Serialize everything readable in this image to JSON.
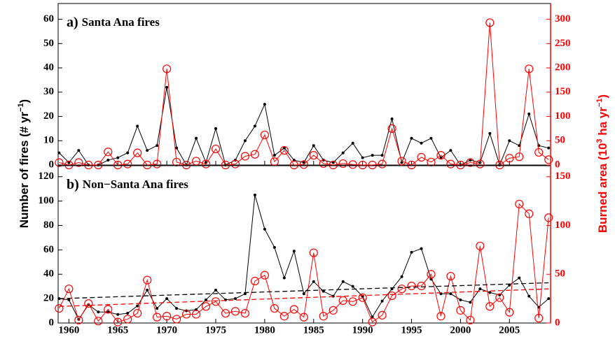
{
  "chart_data": [
    {
      "type": "line",
      "panel": "a)",
      "title": "Santa Ana fires",
      "ylabel": {
        "text": "Number of fires (# yr",
        "sup": "−1",
        "tail": ")"
      },
      "y2label": {
        "text": "Burned area (10",
        "sup": "3",
        "mid": " ha yr",
        "sup2": "−1",
        "tail": ")"
      },
      "x": [
        1959,
        1960,
        1961,
        1962,
        1963,
        1964,
        1965,
        1966,
        1967,
        1968,
        1969,
        1970,
        1971,
        1972,
        1973,
        1974,
        1975,
        1976,
        1977,
        1978,
        1979,
        1980,
        1981,
        1982,
        1983,
        1984,
        1985,
        1986,
        1987,
        1988,
        1989,
        1990,
        1991,
        1992,
        1993,
        1994,
        1995,
        1996,
        1997,
        1998,
        1999,
        2000,
        2001,
        2002,
        2003,
        2004,
        2005,
        2006,
        2007,
        2008,
        2009
      ],
      "xlim": [
        1958.9,
        2009.2
      ],
      "xticks": [
        1960,
        1965,
        1970,
        1975,
        1980,
        1985,
        1990,
        1995,
        2000,
        2005
      ],
      "ylim": [
        0,
        66.5
      ],
      "yticks": [
        0,
        10,
        20,
        30,
        40,
        50,
        60
      ],
      "y2lim": [
        0,
        332.5
      ],
      "y2ticks": [
        0,
        50,
        100,
        150,
        200,
        250,
        300
      ],
      "y2color": "#ff0000",
      "series": [
        {
          "color": "#000000",
          "marker": "dot",
          "values": [
            5,
            1,
            6,
            0,
            0,
            2,
            3,
            5,
            16,
            6,
            8,
            32,
            7,
            0,
            11,
            1,
            15,
            0,
            2,
            10,
            16,
            25,
            4,
            7,
            2,
            1,
            8,
            2,
            1,
            5,
            9,
            3,
            4,
            4,
            19,
            1,
            11,
            9,
            11,
            3,
            6,
            0,
            2,
            1,
            13,
            0,
            10,
            8,
            21,
            8,
            7
          ]
        },
        {
          "color": "#ff0000",
          "marker": "circle",
          "axis": "y2",
          "values": [
            5,
            0,
            5,
            0,
            0,
            27,
            0,
            2,
            25,
            0,
            2,
            198,
            6,
            0,
            8,
            2,
            33,
            0,
            2,
            18,
            22,
            62,
            7,
            30,
            0,
            1,
            20,
            3,
            0,
            3,
            1,
            0,
            0,
            2,
            75,
            8,
            0,
            16,
            6,
            20,
            2,
            0,
            5,
            2,
            293,
            0,
            14,
            17,
            198,
            26,
            11
          ]
        }
      ]
    },
    {
      "type": "line",
      "panel": "b)",
      "title": "Non−Santa Ana fires",
      "x": [
        1959,
        1960,
        1961,
        1962,
        1963,
        1964,
        1965,
        1966,
        1967,
        1968,
        1969,
        1970,
        1971,
        1972,
        1973,
        1974,
        1975,
        1976,
        1977,
        1978,
        1979,
        1980,
        1981,
        1982,
        1983,
        1984,
        1985,
        1986,
        1987,
        1988,
        1989,
        1990,
        1991,
        1992,
        1993,
        1994,
        1995,
        1996,
        1997,
        1998,
        1999,
        2000,
        2001,
        2002,
        2003,
        2004,
        2005,
        2006,
        2007,
        2008,
        2009
      ],
      "xlim": [
        1958.9,
        2009.2
      ],
      "xticks": [
        1960,
        1965,
        1970,
        1975,
        1980,
        1985,
        1990,
        1995,
        2000,
        2005
      ],
      "ylim": [
        0,
        129
      ],
      "yticks": [
        0,
        20,
        40,
        60,
        80,
        100,
        120
      ],
      "y2lim": [
        0,
        161.3
      ],
      "y2ticks": [
        0,
        50,
        100,
        150
      ],
      "y2color": "#ff0000",
      "series": [
        {
          "color": "#000000",
          "marker": "dot",
          "values": [
            20,
            19,
            3,
            15,
            9,
            9,
            7,
            8,
            14,
            27,
            12,
            20,
            12,
            10,
            11,
            19,
            27,
            19,
            20,
            24,
            105,
            77,
            62,
            37,
            59,
            24,
            34,
            26,
            22,
            34,
            30,
            22,
            5,
            18,
            28,
            38,
            58,
            61,
            36,
            24,
            24,
            19,
            17,
            28,
            25,
            23,
            31,
            37,
            22,
            13,
            20
          ]
        },
        {
          "color": "#ff0000",
          "marker": "circle",
          "axis": "y2",
          "values": [
            15,
            35,
            3,
            20,
            2,
            14,
            1,
            4,
            10,
            44,
            6,
            7,
            4,
            9,
            9,
            17,
            22,
            10,
            12,
            10,
            43,
            49,
            15,
            7,
            14,
            6,
            72,
            7,
            13,
            23,
            22,
            26,
            1,
            8,
            28,
            35,
            38,
            38,
            50,
            7,
            48,
            13,
            3,
            79,
            17,
            26,
            11,
            122,
            112,
            5,
            108
          ]
        },
        {
          "color": "#000000",
          "dashed": true,
          "x": [
            1959,
            2009
          ],
          "values": [
            20,
            33
          ]
        },
        {
          "color": "#ff0000",
          "dashed": true,
          "axis": "y2",
          "x": [
            1959,
            2009
          ],
          "values": [
            17,
            35
          ]
        }
      ]
    }
  ]
}
